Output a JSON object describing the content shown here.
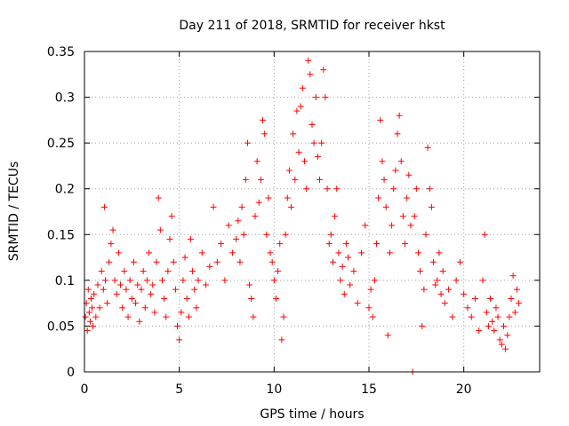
{
  "chart_data": {
    "type": "scatter",
    "title": "Day 211 of 2018, SRMTID for receiver hkst",
    "xlabel": "GPS time / hours",
    "ylabel": "SRMTID / TECUs",
    "xlim": [
      0,
      24
    ],
    "ylim": [
      0,
      0.35
    ],
    "xticks": [
      0,
      5,
      10,
      15,
      20
    ],
    "xtick_labels": [
      "0",
      "5",
      "10",
      "15",
      "20"
    ],
    "yticks": [
      0,
      0.05,
      0.1,
      0.15,
      0.2,
      0.25,
      0.3,
      0.35
    ],
    "ytick_labels": [
      "0",
      "0.05",
      "0.1",
      "0.15",
      "0.2",
      "0.25",
      "0.3",
      "0.35"
    ],
    "grid": true,
    "marker": "plus",
    "color": "#ff0000",
    "series": [
      {
        "points": [
          [
            0.05,
            0.06
          ],
          [
            0.1,
            0.075
          ],
          [
            0.15,
            0.045
          ],
          [
            0.2,
            0.09
          ],
          [
            0.25,
            0.065
          ],
          [
            0.3,
            0.055
          ],
          [
            0.35,
            0.08
          ],
          [
            0.4,
            0.07
          ],
          [
            0.45,
            0.05
          ],
          [
            0.5,
            0.085
          ],
          [
            0.6,
            0.06
          ],
          [
            0.7,
            0.095
          ],
          [
            0.8,
            0.07
          ],
          [
            0.9,
            0.11
          ],
          [
            1.0,
            0.09
          ],
          [
            1.05,
            0.18
          ],
          [
            1.1,
            0.1
          ],
          [
            1.2,
            0.075
          ],
          [
            1.3,
            0.12
          ],
          [
            1.4,
            0.14
          ],
          [
            1.5,
            0.155
          ],
          [
            1.6,
            0.1
          ],
          [
            1.7,
            0.085
          ],
          [
            1.8,
            0.13
          ],
          [
            1.9,
            0.095
          ],
          [
            2.0,
            0.07
          ],
          [
            2.1,
            0.11
          ],
          [
            2.2,
            0.09
          ],
          [
            2.3,
            0.06
          ],
          [
            2.4,
            0.1
          ],
          [
            2.5,
            0.08
          ],
          [
            2.6,
            0.12
          ],
          [
            2.7,
            0.075
          ],
          [
            2.8,
            0.095
          ],
          [
            2.9,
            0.055
          ],
          [
            3.0,
            0.09
          ],
          [
            3.1,
            0.11
          ],
          [
            3.2,
            0.07
          ],
          [
            3.3,
            0.1
          ],
          [
            3.4,
            0.13
          ],
          [
            3.5,
            0.085
          ],
          [
            3.6,
            0.095
          ],
          [
            3.7,
            0.065
          ],
          [
            3.8,
            0.12
          ],
          [
            3.9,
            0.19
          ],
          [
            4.0,
            0.155
          ],
          [
            4.1,
            0.1
          ],
          [
            4.2,
            0.08
          ],
          [
            4.3,
            0.06
          ],
          [
            4.4,
            0.11
          ],
          [
            4.5,
            0.145
          ],
          [
            4.6,
            0.17
          ],
          [
            4.7,
            0.12
          ],
          [
            4.8,
            0.09
          ],
          [
            4.9,
            0.05
          ],
          [
            5.0,
            0.035
          ],
          [
            5.1,
            0.065
          ],
          [
            5.2,
            0.1
          ],
          [
            5.3,
            0.125
          ],
          [
            5.4,
            0.08
          ],
          [
            5.5,
            0.06
          ],
          [
            5.6,
            0.145
          ],
          [
            5.7,
            0.11
          ],
          [
            5.8,
            0.09
          ],
          [
            5.9,
            0.07
          ],
          [
            6.0,
            0.1
          ],
          [
            6.2,
            0.13
          ],
          [
            6.4,
            0.095
          ],
          [
            6.6,
            0.115
          ],
          [
            6.8,
            0.18
          ],
          [
            7.0,
            0.12
          ],
          [
            7.2,
            0.14
          ],
          [
            7.4,
            0.1
          ],
          [
            7.6,
            0.16
          ],
          [
            7.8,
            0.13
          ],
          [
            8.0,
            0.145
          ],
          [
            8.1,
            0.165
          ],
          [
            8.2,
            0.12
          ],
          [
            8.3,
            0.18
          ],
          [
            8.4,
            0.15
          ],
          [
            8.5,
            0.21
          ],
          [
            8.6,
            0.25
          ],
          [
            8.7,
            0.095
          ],
          [
            8.8,
            0.08
          ],
          [
            8.9,
            0.06
          ],
          [
            9.0,
            0.17
          ],
          [
            9.1,
            0.23
          ],
          [
            9.2,
            0.185
          ],
          [
            9.3,
            0.21
          ],
          [
            9.4,
            0.275
          ],
          [
            9.5,
            0.26
          ],
          [
            9.6,
            0.15
          ],
          [
            9.7,
            0.19
          ],
          [
            9.8,
            0.13
          ],
          [
            9.9,
            0.12
          ],
          [
            10.0,
            0.1
          ],
          [
            10.1,
            0.08
          ],
          [
            10.2,
            0.11
          ],
          [
            10.3,
            0.14
          ],
          [
            10.4,
            0.035
          ],
          [
            10.5,
            0.06
          ],
          [
            10.6,
            0.15
          ],
          [
            10.7,
            0.19
          ],
          [
            10.8,
            0.22
          ],
          [
            10.9,
            0.18
          ],
          [
            11.0,
            0.26
          ],
          [
            11.1,
            0.21
          ],
          [
            11.2,
            0.285
          ],
          [
            11.3,
            0.24
          ],
          [
            11.4,
            0.29
          ],
          [
            11.5,
            0.31
          ],
          [
            11.6,
            0.23
          ],
          [
            11.7,
            0.2
          ],
          [
            11.8,
            0.34
          ],
          [
            11.9,
            0.325
          ],
          [
            12.0,
            0.27
          ],
          [
            12.1,
            0.25
          ],
          [
            12.2,
            0.3
          ],
          [
            12.3,
            0.235
          ],
          [
            12.4,
            0.21
          ],
          [
            12.5,
            0.25
          ],
          [
            12.6,
            0.33
          ],
          [
            12.7,
            0.3
          ],
          [
            12.8,
            0.2
          ],
          [
            12.9,
            0.14
          ],
          [
            13.0,
            0.15
          ],
          [
            13.1,
            0.12
          ],
          [
            13.2,
            0.17
          ],
          [
            13.3,
            0.2
          ],
          [
            13.4,
            0.13
          ],
          [
            13.5,
            0.1
          ],
          [
            13.6,
            0.115
          ],
          [
            13.7,
            0.085
          ],
          [
            13.8,
            0.14
          ],
          [
            13.9,
            0.125
          ],
          [
            14.0,
            0.095
          ],
          [
            14.2,
            0.11
          ],
          [
            14.4,
            0.075
          ],
          [
            14.6,
            0.13
          ],
          [
            14.8,
            0.16
          ],
          [
            15.0,
            0.07
          ],
          [
            15.1,
            0.09
          ],
          [
            15.2,
            0.06
          ],
          [
            15.3,
            0.1
          ],
          [
            15.4,
            0.14
          ],
          [
            15.5,
            0.19
          ],
          [
            15.6,
            0.275
          ],
          [
            15.7,
            0.23
          ],
          [
            15.8,
            0.21
          ],
          [
            15.9,
            0.18
          ],
          [
            16.0,
            0.04
          ],
          [
            16.1,
            0.13
          ],
          [
            16.2,
            0.16
          ],
          [
            16.3,
            0.2
          ],
          [
            16.4,
            0.22
          ],
          [
            16.5,
            0.26
          ],
          [
            16.6,
            0.28
          ],
          [
            16.7,
            0.23
          ],
          [
            16.8,
            0.17
          ],
          [
            16.9,
            0.14
          ],
          [
            17.0,
            0.19
          ],
          [
            17.1,
            0.215
          ],
          [
            17.2,
            0.16
          ],
          [
            17.3,
            0.0
          ],
          [
            17.4,
            0.17
          ],
          [
            17.5,
            0.2
          ],
          [
            17.6,
            0.13
          ],
          [
            17.7,
            0.11
          ],
          [
            17.8,
            0.05
          ],
          [
            17.9,
            0.09
          ],
          [
            18.0,
            0.15
          ],
          [
            18.1,
            0.245
          ],
          [
            18.2,
            0.2
          ],
          [
            18.3,
            0.18
          ],
          [
            18.4,
            0.12
          ],
          [
            18.5,
            0.095
          ],
          [
            18.6,
            0.1
          ],
          [
            18.7,
            0.13
          ],
          [
            18.8,
            0.085
          ],
          [
            18.9,
            0.11
          ],
          [
            19.0,
            0.075
          ],
          [
            19.2,
            0.09
          ],
          [
            19.4,
            0.06
          ],
          [
            19.6,
            0.1
          ],
          [
            19.8,
            0.12
          ],
          [
            20.0,
            0.085
          ],
          [
            20.2,
            0.07
          ],
          [
            20.4,
            0.06
          ],
          [
            20.6,
            0.08
          ],
          [
            20.8,
            0.045
          ],
          [
            21.0,
            0.1
          ],
          [
            21.1,
            0.15
          ],
          [
            21.2,
            0.065
          ],
          [
            21.3,
            0.05
          ],
          [
            21.4,
            0.08
          ],
          [
            21.5,
            0.055
          ],
          [
            21.6,
            0.045
          ],
          [
            21.7,
            0.07
          ],
          [
            21.8,
            0.06
          ],
          [
            21.9,
            0.035
          ],
          [
            22.0,
            0.03
          ],
          [
            22.1,
            0.05
          ],
          [
            22.2,
            0.025
          ],
          [
            22.3,
            0.04
          ],
          [
            22.4,
            0.06
          ],
          [
            22.5,
            0.08
          ],
          [
            22.6,
            0.105
          ],
          [
            22.7,
            0.065
          ],
          [
            22.8,
            0.09
          ],
          [
            22.9,
            0.075
          ]
        ]
      }
    ]
  }
}
